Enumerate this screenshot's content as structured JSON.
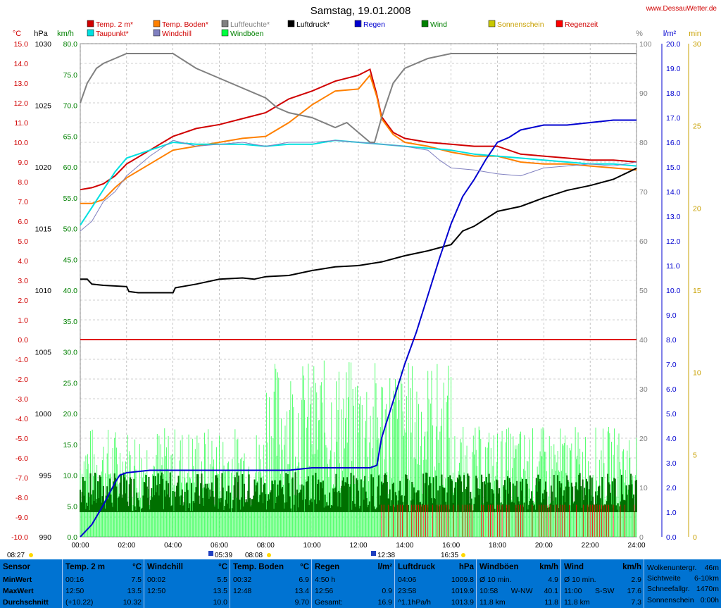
{
  "header": {
    "title": "Samstag, 19.01.2008",
    "site": "www.DessauWetter.de"
  },
  "units": {
    "celsius": "°C",
    "hpa": "hPa",
    "kmh": "km/h",
    "percent": "%",
    "lm2": "l/m²",
    "min": "min"
  },
  "legend": [
    {
      "label": "Temp. 2 m*",
      "color": "#d00000",
      "text_color": "#d00000"
    },
    {
      "label": "Temp. Boden*",
      "color": "#ff8000",
      "text_color": "#d00000"
    },
    {
      "label": "Luftfeuchte*",
      "color": "#808080",
      "text_color": "#808080"
    },
    {
      "label": "Luftdruck*",
      "color": "#000000",
      "text_color": "#000000"
    },
    {
      "label": "Regen",
      "color": "#0000d0",
      "text_color": "#0000d0"
    },
    {
      "label": "Wind",
      "color": "#008000",
      "text_color": "#008000"
    },
    {
      "label": "Sonnenschein",
      "color": "#c8c800",
      "text_color": "#c8a000"
    },
    {
      "label": "Regenzeit",
      "color": "#ff0000",
      "text_color": "#d00000"
    },
    {
      "label": "Taupunkt*",
      "color": "#00e0e0",
      "text_color": "#d00000"
    },
    {
      "label": "Windchill",
      "color": "#8080c0",
      "text_color": "#d00000"
    },
    {
      "label": "Windböen",
      "color": "#00ff40",
      "text_color": "#008000"
    }
  ],
  "markers": {
    "sunrise": "08:27",
    "sunset": "16:35",
    "event1": "05:39",
    "event2": "08:08",
    "event3": "12:38"
  },
  "chart_data": {
    "type": "line",
    "x_unit": "hour of day",
    "xlim": [
      0,
      24
    ],
    "x_ticks": [
      "00:00",
      "02:00",
      "04:00",
      "06:00",
      "08:00",
      "10:00",
      "12:00",
      "14:00",
      "16:00",
      "18:00",
      "20:00",
      "22:00",
      "24:00"
    ],
    "axes": {
      "temp_c": {
        "range": [
          -10,
          15
        ],
        "ticks": [
          "15.0",
          "14.0",
          "13.0",
          "12.0",
          "11.0",
          "10.0",
          "9.0",
          "8.0",
          "7.0",
          "6.0",
          "5.0",
          "4.0",
          "3.0",
          "2.0",
          "1.0",
          "0.0",
          "-1.0",
          "-2.0",
          "-3.0",
          "-4.0",
          "-5.0",
          "-6.0",
          "-7.0",
          "-8.0",
          "-9.0",
          "-10.0"
        ]
      },
      "pressure_hpa": {
        "range": [
          990,
          1030
        ],
        "ticks": [
          "1030",
          "1025",
          "1020",
          "1015",
          "1010",
          "1005",
          "1000",
          "995",
          "990"
        ]
      },
      "wind_kmh": {
        "range": [
          0,
          80
        ],
        "ticks": [
          "80.0",
          "75.0",
          "70.0",
          "65.0",
          "60.0",
          "55.0",
          "50.0",
          "45.0",
          "40.0",
          "35.0",
          "30.0",
          "25.0",
          "20.0",
          "15.0",
          "10.0",
          "5.0",
          "0.0"
        ]
      },
      "humidity_pct": {
        "range": [
          0,
          100
        ],
        "ticks": [
          "100",
          "90",
          "80",
          "70",
          "60",
          "50",
          "40",
          "30",
          "20",
          "10",
          "0"
        ]
      },
      "rain_lm2": {
        "range": [
          0,
          20
        ],
        "ticks": [
          "20.0",
          "19.0",
          "18.0",
          "17.0",
          "16.0",
          "15.0",
          "14.0",
          "13.0",
          "12.0",
          "11.0",
          "10.0",
          "9.0",
          "8.0",
          "7.0",
          "6.0",
          "5.0",
          "4.0",
          "3.0",
          "2.0",
          "1.0",
          "0.0"
        ]
      },
      "minutes": {
        "range": [
          0,
          30
        ],
        "ticks": [
          "30",
          "25",
          "20",
          "15",
          "10",
          "5",
          "0"
        ]
      }
    },
    "series": [
      {
        "name": "Temp. 2 m",
        "axis": "temp_c",
        "color": "#d00000",
        "x": [
          0,
          0.5,
          1,
          1.5,
          2,
          3,
          4,
          5,
          6,
          7,
          8,
          9,
          10,
          11,
          12,
          12.5,
          12.8,
          13,
          13.5,
          14,
          15,
          16,
          17,
          18,
          19,
          20,
          21,
          22,
          23,
          24
        ],
        "y": [
          7.6,
          7.7,
          7.9,
          8.3,
          8.9,
          9.6,
          10.3,
          10.7,
          10.9,
          11.2,
          11.5,
          12.2,
          12.6,
          13.1,
          13.4,
          13.7,
          12.4,
          11.3,
          10.5,
          10.2,
          10.0,
          9.9,
          9.8,
          9.8,
          9.4,
          9.3,
          9.2,
          9.1,
          9.1,
          9.0
        ]
      },
      {
        "name": "Temp. Boden",
        "axis": "temp_c",
        "color": "#ff8000",
        "x": [
          0,
          0.5,
          1,
          1.5,
          2,
          3,
          4,
          5,
          6,
          7,
          8,
          9,
          10,
          11,
          12,
          12.5,
          12.8,
          13,
          13.5,
          14,
          15,
          16,
          17,
          18,
          19,
          20,
          21,
          22,
          23,
          24
        ],
        "y": [
          6.9,
          6.9,
          7.1,
          7.7,
          8.2,
          8.9,
          9.6,
          9.8,
          10.0,
          10.2,
          10.3,
          11.0,
          11.9,
          12.6,
          12.7,
          13.4,
          12.3,
          11.2,
          10.4,
          10.0,
          9.8,
          9.5,
          9.3,
          9.3,
          9.0,
          8.9,
          8.9,
          8.8,
          8.7,
          8.6
        ]
      },
      {
        "name": "Taupunkt",
        "axis": "temp_c",
        "color": "#00e0e0",
        "x": [
          0,
          0.5,
          1,
          1.5,
          2,
          3,
          4,
          5,
          6,
          7,
          8,
          9,
          10,
          11,
          12,
          13,
          14,
          15,
          16,
          17,
          18,
          19,
          20,
          21,
          22,
          23,
          24
        ],
        "y": [
          5.8,
          6.7,
          7.6,
          8.5,
          9.2,
          9.6,
          10.0,
          9.9,
          9.9,
          9.9,
          9.8,
          9.9,
          9.9,
          10.1,
          10.0,
          9.9,
          9.8,
          9.7,
          9.6,
          9.4,
          9.3,
          9.2,
          9.1,
          9.0,
          8.9,
          8.9,
          8.8
        ]
      },
      {
        "name": "Luftfeuchte",
        "axis": "humidity_pct",
        "color": "#808080",
        "x": [
          0,
          0.3,
          0.7,
          1,
          1.5,
          2,
          3,
          4,
          5,
          6,
          7,
          8,
          8.5,
          9,
          10,
          11,
          11.5,
          12,
          12.5,
          12.7,
          13,
          13.5,
          14,
          15,
          16,
          17,
          18,
          19,
          20,
          21,
          22,
          23,
          24
        ],
        "y": [
          88,
          92,
          95,
          96,
          97,
          98,
          98,
          98,
          95,
          93,
          91,
          89,
          87,
          86,
          85,
          83,
          84,
          82,
          80,
          80,
          85,
          92,
          95,
          97,
          98,
          98,
          98,
          98,
          98,
          98,
          98,
          98,
          98
        ]
      },
      {
        "name": "Luftdruck",
        "axis": "pressure_hpa",
        "color": "#000000",
        "x": [
          0,
          0.3,
          0.5,
          1,
          2,
          2.1,
          2.5,
          3,
          4,
          4.1,
          5,
          6,
          7,
          7.5,
          8,
          9,
          10,
          11,
          12,
          13,
          14,
          15,
          16,
          16.5,
          17,
          17.5,
          18,
          19,
          20,
          21,
          22,
          23,
          24
        ],
        "y": [
          1010.9,
          1010.9,
          1010.5,
          1010.4,
          1010.3,
          1009.9,
          1009.8,
          1009.8,
          1009.8,
          1010.2,
          1010.5,
          1010.9,
          1011.0,
          1010.9,
          1011.1,
          1011.2,
          1011.6,
          1011.9,
          1012.0,
          1012.3,
          1012.8,
          1013.2,
          1013.7,
          1014.8,
          1015.2,
          1015.8,
          1016.4,
          1016.8,
          1017.5,
          1018.1,
          1018.5,
          1019.0,
          1019.9
        ]
      },
      {
        "name": "Regen",
        "axis": "rain_lm2",
        "color": "#0000d0",
        "x": [
          0,
          0.5,
          1,
          1.5,
          1.7,
          2,
          3,
          4,
          5,
          6,
          7,
          8,
          9,
          10,
          11,
          12,
          12.5,
          12.8,
          13,
          13.5,
          14,
          14.5,
          15,
          15.5,
          16,
          16.5,
          17,
          17.5,
          18,
          18.5,
          19,
          20,
          21,
          22,
          23,
          24
        ],
        "y": [
          0,
          0.5,
          1.3,
          2.2,
          2.5,
          2.6,
          2.7,
          2.7,
          2.7,
          2.7,
          2.7,
          2.7,
          2.7,
          2.8,
          2.8,
          2.8,
          2.8,
          2.9,
          4.0,
          5.5,
          7.0,
          8.3,
          9.8,
          11.3,
          12.7,
          13.8,
          14.5,
          15.3,
          16.0,
          16.2,
          16.5,
          16.7,
          16.7,
          16.8,
          16.9,
          16.9
        ]
      },
      {
        "name": "Windchill",
        "axis": "temp_c",
        "color": "#8080c0",
        "x": [
          0,
          0.5,
          1,
          1.5,
          2,
          3,
          4,
          5,
          6,
          7,
          8,
          9,
          10,
          11,
          12,
          13,
          14,
          15,
          15.5,
          16,
          17,
          18,
          19,
          20,
          21,
          22,
          23,
          24
        ],
        "y": [
          5.5,
          6.0,
          7.0,
          7.5,
          8.3,
          9.3,
          10.1,
          9.8,
          9.9,
          10.0,
          9.8,
          10.0,
          10.0,
          10.1,
          10.0,
          9.9,
          9.8,
          9.6,
          9.1,
          8.7,
          8.6,
          8.4,
          8.3,
          8.7,
          8.8,
          8.9,
          8.8,
          9.0
        ]
      }
    ],
    "wind_mean_approx_kmh": 6.5,
    "wind_gust_max_kmh": 40.1,
    "wind_max_kmh": 17.6
  },
  "stats": {
    "row_labels": [
      "Sensor",
      "MinWert",
      "MaxWert",
      "Durchschnitt"
    ],
    "columns": [
      {
        "title": "Temp. 2 m",
        "unit": "°C",
        "min_time": "00:16",
        "min_val": "7.5",
        "max_time": "12:50",
        "max_val": "13.5",
        "avg_note": "(+10.22)",
        "avg_val": "10.32"
      },
      {
        "title": "Windchill",
        "unit": "°C",
        "min_time": "00:02",
        "min_val": "5.5",
        "max_time": "12:50",
        "max_val": "13.5",
        "avg_note": "",
        "avg_val": "10.0"
      },
      {
        "title": "Temp. Boden",
        "unit": "°C",
        "min_time": "00:32",
        "min_val": "6.9",
        "max_time": "12:48",
        "max_val": "13.4",
        "avg_note": "",
        "avg_val": "9.70"
      },
      {
        "title": "Regen",
        "unit": "l/m²",
        "min_time": "4:50 h",
        "min_val": "",
        "max_time": "12:56",
        "max_val": "0.9",
        "avg_note": "Gesamt:",
        "avg_val": "16.9"
      },
      {
        "title": "Luftdruck",
        "unit": "hPa",
        "min_time": "04:06",
        "min_val": "1009.8",
        "max_time": "23:58",
        "max_val": "1019.9",
        "avg_note": "^1.1hPa/h",
        "avg_val": "1013.9"
      },
      {
        "title": "Windböen",
        "unit": "km/h",
        "min_time": "Ø 10 min.",
        "min_val": "4.9",
        "max_time": "10:58",
        "max_mid": "W-NW",
        "max_val": "40.1",
        "avg_note": "11.8 km",
        "avg_val": "11.8"
      },
      {
        "title": "Wind",
        "unit": "km/h",
        "min_time": "Ø 10 min.",
        "min_val": "2.9",
        "max_time": "11:00",
        "max_mid": "S-SW",
        "max_val": "17.6",
        "avg_note": "11.8 km",
        "avg_val": "7.3"
      }
    ],
    "extra": [
      {
        "label": "Wolkenuntergr.",
        "value": "46m"
      },
      {
        "label": "Sichtweite",
        "value": "6-10km"
      },
      {
        "label": "Schneefallgr.",
        "value": "1470m"
      },
      {
        "label": "Sonnenschein",
        "value": "0:00h"
      }
    ]
  }
}
